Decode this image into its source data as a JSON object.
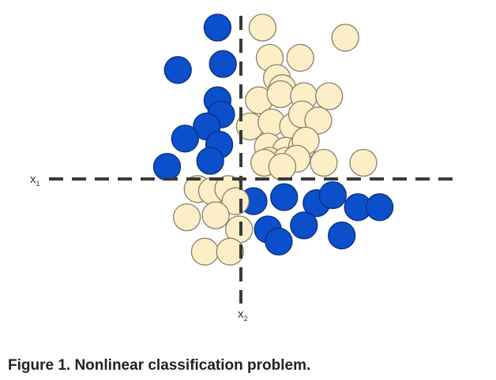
{
  "caption": "Figure 1. Nonlinear classification problem.",
  "chart_data": {
    "type": "scatter",
    "title": "",
    "xlabel": "",
    "ylabel": "",
    "axis_labels": {
      "horizontal": {
        "main": "x",
        "sub": "1"
      },
      "vertical": {
        "main": "x",
        "sub": "2"
      }
    },
    "xlim": [
      -10,
      10
    ],
    "ylim": [
      -10,
      10
    ],
    "grid": false,
    "legend": "none",
    "series": [
      {
        "color": "#0b4fcb",
        "stroke": "#0a2f7a",
        "x": [
          -1.3,
          -3.5,
          -1.0,
          -1.3,
          -1.1,
          -1.9,
          -3.1,
          -1.2,
          -1.7,
          -4.1,
          0.7,
          2.4,
          4.2,
          5.1,
          6.5,
          7.7,
          1.5,
          2.1,
          3.5,
          5.6
        ],
        "y": [
          7.5,
          5.4,
          5.7,
          3.9,
          3.2,
          2.6,
          2.0,
          1.7,
          0.9,
          0.6,
          -1.1,
          -0.9,
          -1.2,
          -0.8,
          -1.4,
          -1.4,
          -2.5,
          -3.1,
          -2.3,
          -2.8
        ]
      },
      {
        "color": "#fcefc8",
        "stroke": "#8a806a",
        "x": [
          1.2,
          5.8,
          1.6,
          3.3,
          2.0,
          2.3,
          1.0,
          2.2,
          3.5,
          4.9,
          0.5,
          1.7,
          2.9,
          3.4,
          4.3,
          1.5,
          2.5,
          3.4,
          3.6,
          1.6,
          2.5,
          3.1,
          1.3,
          2.3,
          4.6,
          6.8,
          -2.4,
          -1.6,
          -0.7,
          -0.3,
          -3.0,
          -1.4,
          -0.1,
          -2.0,
          -0.6
        ],
        "y": [
          7.5,
          7.0,
          6.0,
          6.0,
          5.0,
          4.5,
          3.9,
          4.2,
          4.1,
          4.1,
          2.6,
          2.8,
          2.6,
          3.2,
          2.9,
          1.6,
          1.4,
          1.6,
          1.9,
          0.9,
          0.9,
          1.0,
          0.8,
          0.6,
          0.8,
          0.8,
          -0.5,
          -0.6,
          -0.5,
          -1.1,
          -1.9,
          -1.8,
          -2.5,
          -3.6,
          -3.6
        ]
      }
    ]
  }
}
